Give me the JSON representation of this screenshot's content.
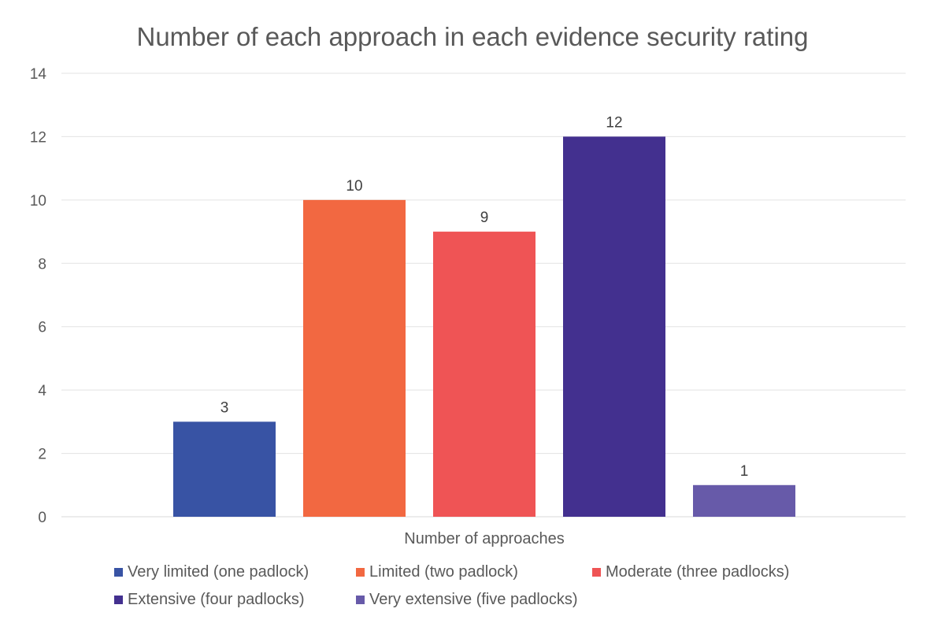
{
  "chart_data": {
    "type": "bar",
    "title": "Number of each approach in each evidence security rating",
    "xlabel": "Number of approaches",
    "ylabel": "",
    "ylim": [
      0,
      14
    ],
    "yticks": [
      0,
      2,
      4,
      6,
      8,
      10,
      12,
      14
    ],
    "grid": true,
    "legend_position": "bottom",
    "categories": [
      "Number of approaches"
    ],
    "series": [
      {
        "name": "Very limited (one padlock)",
        "values": [
          3
        ],
        "color": "#3853a4"
      },
      {
        "name": "Limited (two padlock)",
        "values": [
          10
        ],
        "color": "#f26841"
      },
      {
        "name": "Moderate (three padlocks)",
        "values": [
          9
        ],
        "color": "#ef5455"
      },
      {
        "name": "Extensive (four padlocks)",
        "values": [
          12
        ],
        "color": "#43308f"
      },
      {
        "name": "Very extensive (five padlocks)",
        "values": [
          1
        ],
        "color": "#675aa9"
      }
    ]
  }
}
